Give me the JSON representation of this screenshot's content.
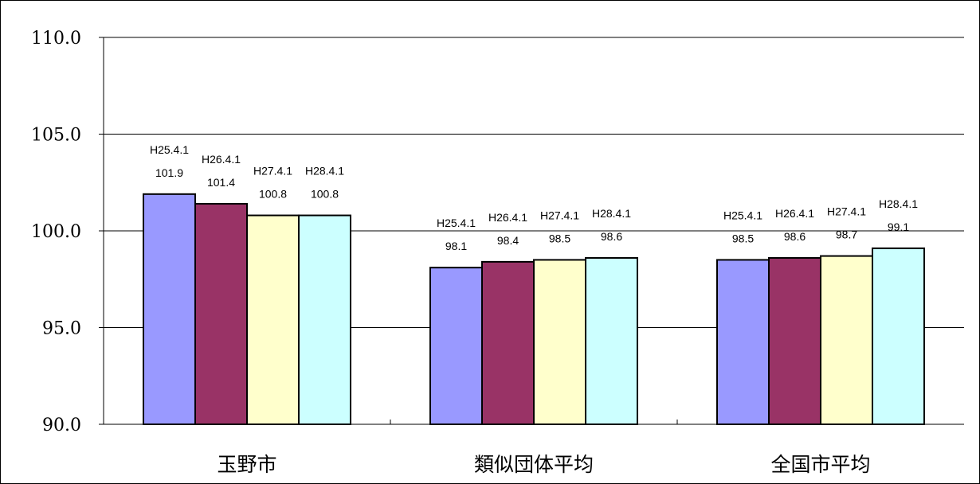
{
  "chart_data": {
    "type": "bar",
    "categories": [
      "玉野市",
      "類似団体平均",
      "全国市平均"
    ],
    "series": [
      {
        "name": "H25.4.1",
        "values": [
          101.9,
          98.1,
          98.5
        ],
        "color": "#9999ff"
      },
      {
        "name": "H26.4.1",
        "values": [
          101.4,
          98.4,
          98.6
        ],
        "color": "#993366"
      },
      {
        "name": "H27.4.1",
        "values": [
          100.8,
          98.5,
          98.7
        ],
        "color": "#ffffcc"
      },
      {
        "name": "H28.4.1",
        "values": [
          100.8,
          98.6,
          99.1
        ],
        "color": "#ccffff"
      }
    ],
    "y_ticks": [
      "110.0",
      "105.0",
      "100.0",
      "95.0",
      "90.0"
    ],
    "y_tick_values": [
      110,
      105,
      100,
      95,
      90
    ],
    "ylim": [
      90,
      110
    ],
    "grid": true,
    "legend": "none",
    "title": "",
    "xlabel": "",
    "ylabel": ""
  }
}
